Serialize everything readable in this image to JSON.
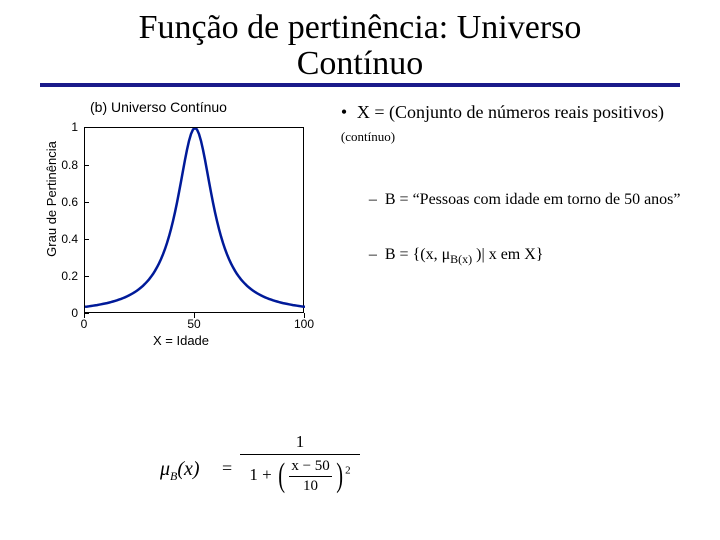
{
  "title_line1": "Função de pertinência: Universo",
  "title_line2": "Contínuo",
  "chart": {
    "caption": "(b) Universo Contínuo",
    "type": "line",
    "xlabel": "X = Idade",
    "ylabel": "Grau de Pertinência",
    "xlim": [
      0,
      100
    ],
    "ylim": [
      0,
      1
    ],
    "xticks": [
      0,
      50,
      100
    ],
    "yticks": [
      0,
      0.2,
      0.4,
      0.6,
      0.8,
      1
    ],
    "ytick_labels": [
      "0",
      "0.2",
      "0.4",
      "0.6",
      "0.8",
      "1"
    ],
    "curve_color": "#001a99",
    "curve_width": 2.5,
    "box_color": "#000000",
    "background_color": "#ffffff",
    "tick_fontsize": 12,
    "label_fontsize": 13,
    "curve": {
      "center": 50,
      "width": 10,
      "formula": "1/(1+((x-50)/10)^2)"
    }
  },
  "bullets": {
    "main_prefix": "X = (Conjunto de números reais positivos) ",
    "main_suffix": "(contínuo)",
    "sub1": "B = “Pessoas com idade em torno de 50 anos”",
    "sub2_pre": "B = {(x, ",
    "sub2_mu": "μ",
    "sub2_sub": "B(x)",
    "sub2_post": " )| x em X}"
  },
  "formula": {
    "lhs_mu": "μ",
    "lhs_sub": "B",
    "lhs_arg": "(x)",
    "eq": "=",
    "numerator": "1",
    "den_lead": "1 +",
    "inner_num": "x − 50",
    "inner_den": "10",
    "exponent": "2"
  }
}
